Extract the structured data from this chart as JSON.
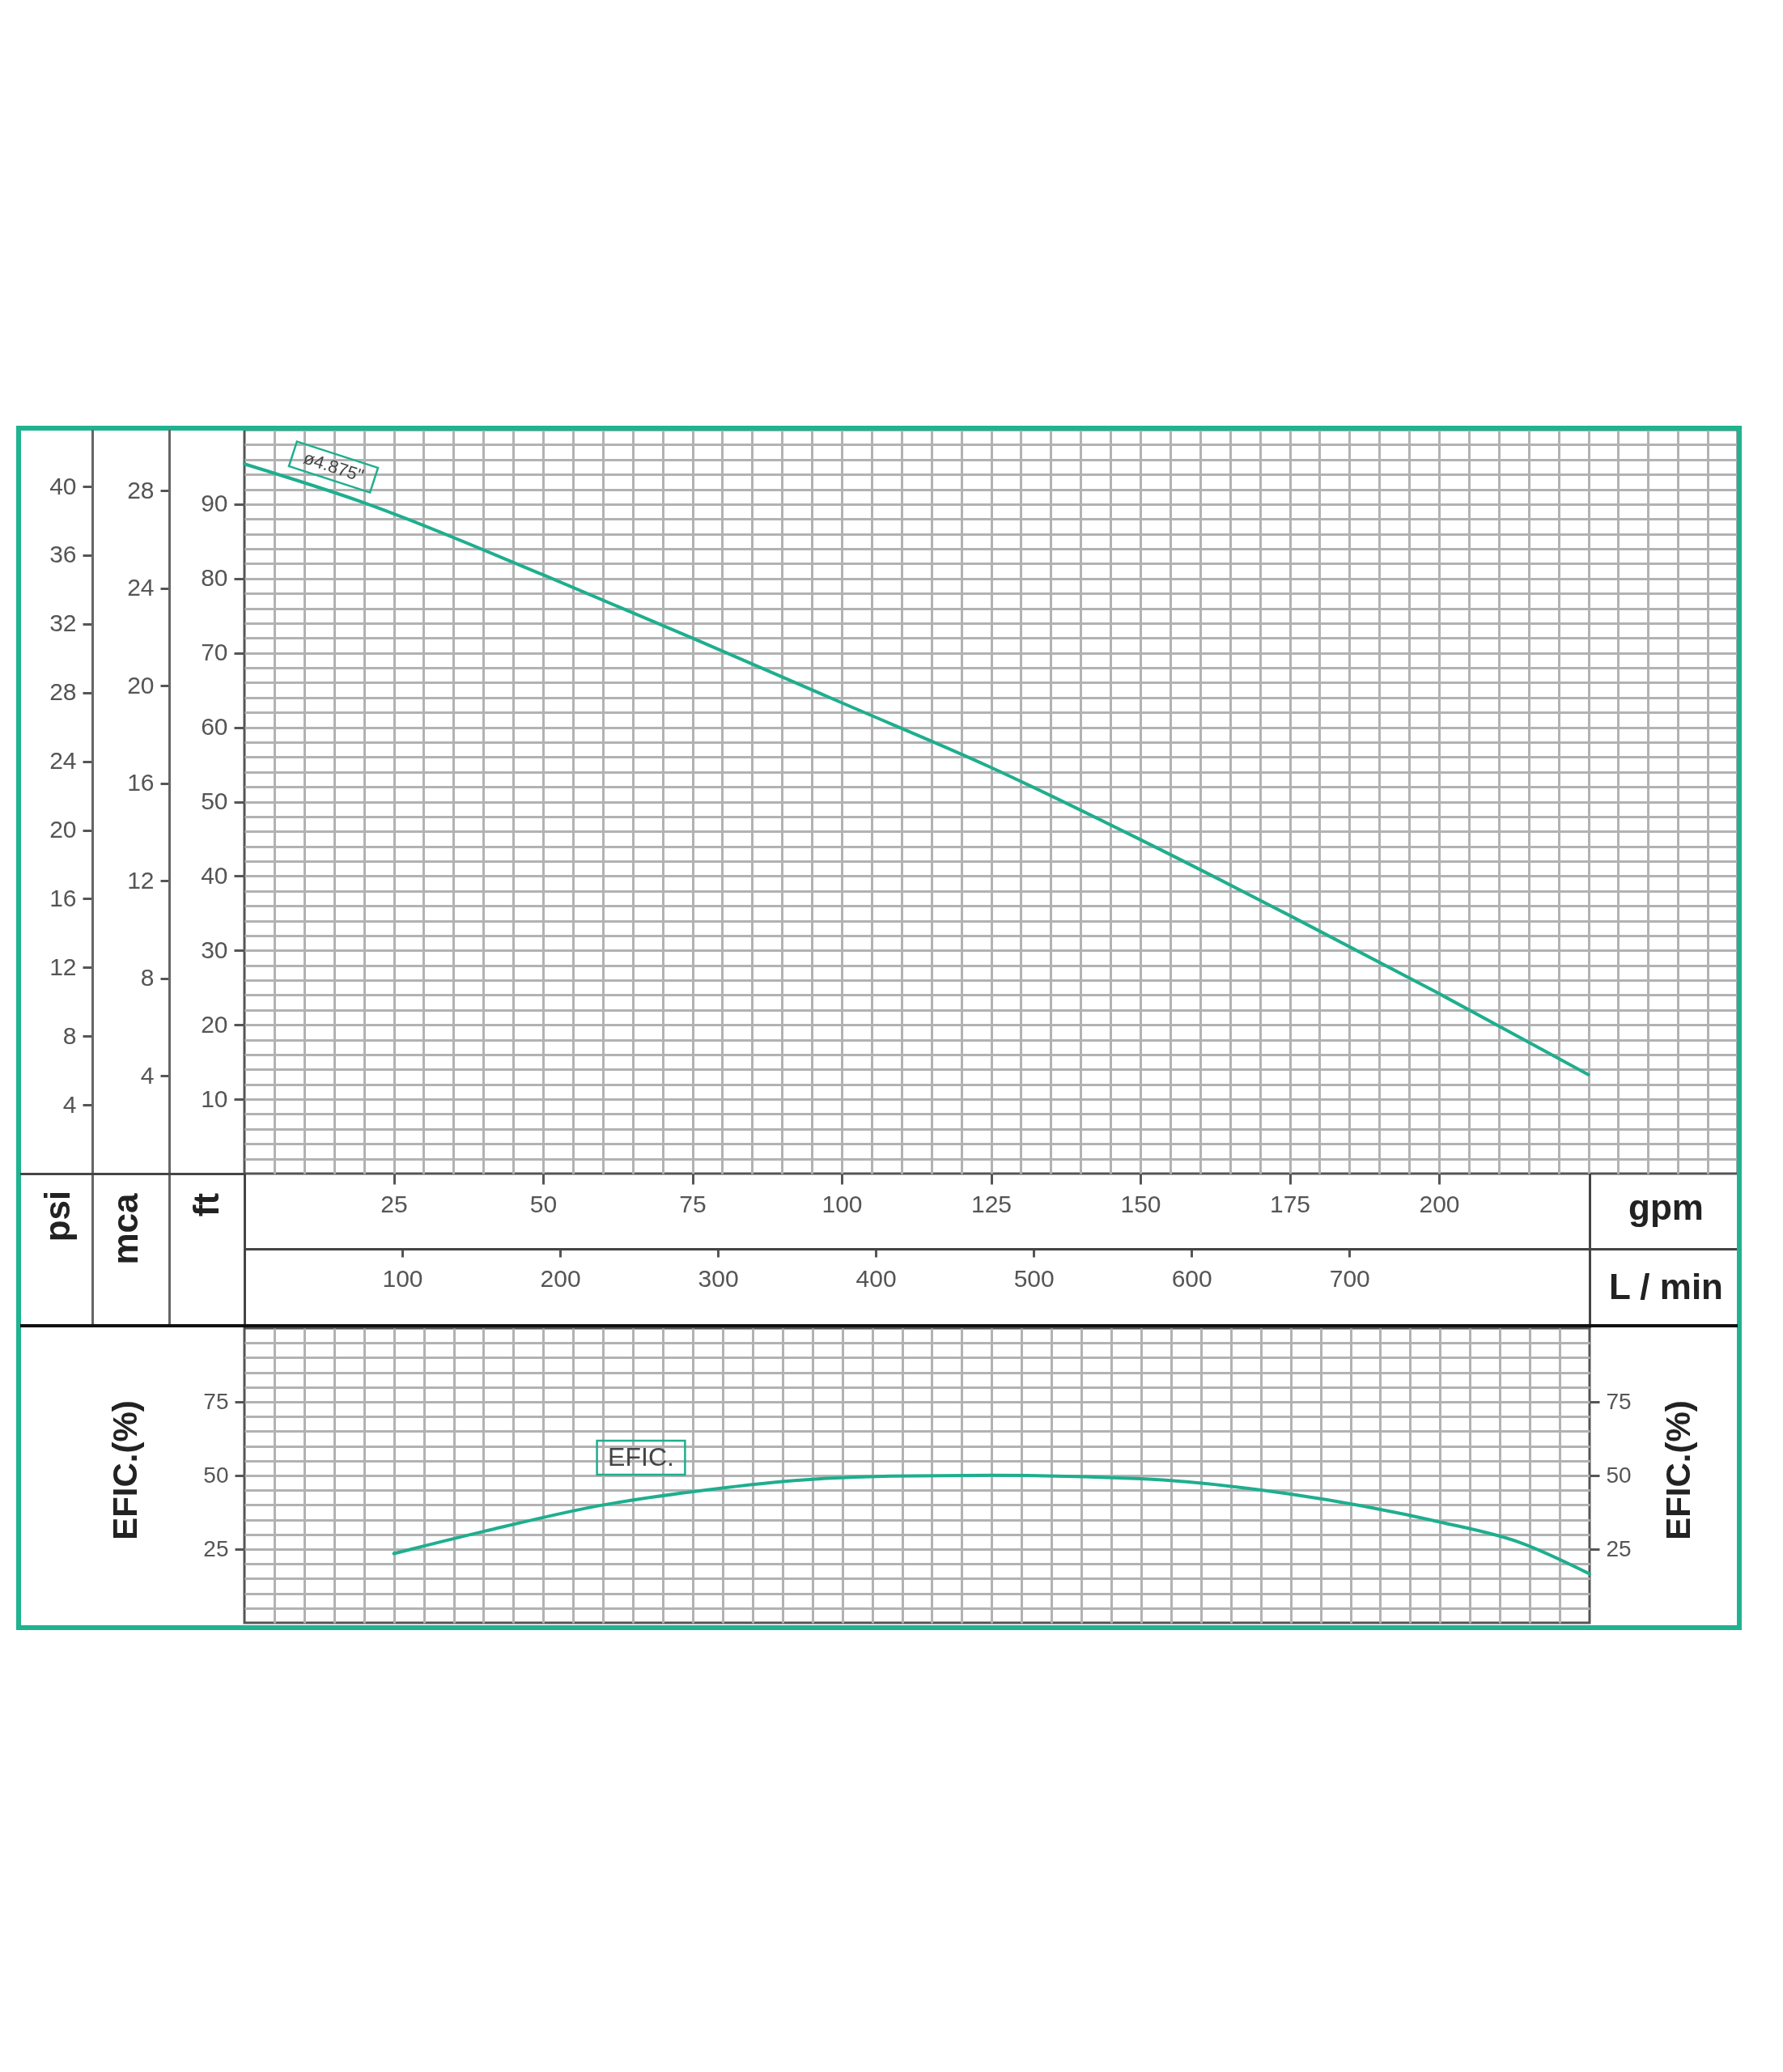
{
  "chart_data": [
    {
      "type": "line",
      "xlabel": "gpm",
      "x2label": "L / min",
      "ylabel": "ft",
      "y2label": "mca",
      "y3label": "psi",
      "xlim": [
        0,
        250
      ],
      "xticks": [
        {
          "value": 5,
          "label": null
        },
        {
          "value": 10,
          "label": null
        },
        {
          "value": 15,
          "label": null
        },
        {
          "value": 20,
          "label": null
        },
        25,
        {
          "value": 30,
          "label": null
        },
        {
          "value": 35,
          "label": null
        },
        {
          "value": 40,
          "label": null
        },
        {
          "value": 45,
          "label": null
        },
        50,
        {
          "value": 55,
          "label": null
        },
        {
          "value": 60,
          "label": null
        },
        {
          "value": 65,
          "label": null
        },
        {
          "value": 70,
          "label": null
        },
        75,
        {
          "value": 80,
          "label": null
        },
        {
          "value": 85,
          "label": null
        },
        {
          "value": 90,
          "label": null
        },
        {
          "value": 95,
          "label": null
        },
        100,
        {
          "value": 105,
          "label": null
        },
        {
          "value": 110,
          "label": null
        },
        {
          "value": 115,
          "label": null
        },
        {
          "value": 120,
          "label": null
        },
        125,
        {
          "value": 130,
          "label": null
        },
        {
          "value": 135,
          "label": null
        },
        {
          "value": 140,
          "label": null
        },
        {
          "value": 145,
          "label": null
        },
        150,
        {
          "value": 155,
          "label": null
        },
        {
          "value": 160,
          "label": null
        },
        {
          "value": 165,
          "label": null
        },
        {
          "value": 170,
          "label": null
        },
        175,
        {
          "value": 180,
          "label": null
        },
        {
          "value": 185,
          "label": null
        },
        {
          "value": 190,
          "label": null
        },
        {
          "value": 195,
          "label": null
        },
        200,
        {
          "value": 205,
          "label": null
        },
        {
          "value": 210,
          "label": null
        },
        {
          "value": 215,
          "label": null
        },
        {
          "value": 220,
          "label": null
        },
        {
          "value": 225,
          "label": null
        },
        {
          "value": 230,
          "label": null
        },
        {
          "value": 235,
          "label": null
        },
        {
          "value": 240,
          "label": null
        },
        {
          "value": 245,
          "label": null
        }
      ],
      "x2lim": [
        0,
        946
      ],
      "x2ticks": [
        100,
        200,
        300,
        400,
        500,
        600,
        700
      ],
      "ylim": [
        0,
        100
      ],
      "yticks": [
        {
          "value": 2,
          "label": null
        },
        {
          "value": 4,
          "label": null
        },
        {
          "value": 6,
          "label": null
        },
        {
          "value": 8,
          "label": null
        },
        10,
        {
          "value": 12,
          "label": null
        },
        {
          "value": 14,
          "label": null
        },
        {
          "value": 16,
          "label": null
        },
        {
          "value": 18,
          "label": null
        },
        20,
        {
          "value": 22,
          "label": null
        },
        {
          "value": 24,
          "label": null
        },
        {
          "value": 26,
          "label": null
        },
        {
          "value": 28,
          "label": null
        },
        30,
        {
          "value": 32,
          "label": null
        },
        {
          "value": 34,
          "label": null
        },
        {
          "value": 36,
          "label": null
        },
        {
          "value": 38,
          "label": null
        },
        40,
        {
          "value": 42,
          "label": null
        },
        {
          "value": 44,
          "label": null
        },
        {
          "value": 46,
          "label": null
        },
        {
          "value": 48,
          "label": null
        },
        50,
        {
          "value": 52,
          "label": null
        },
        {
          "value": 54,
          "label": null
        },
        {
          "value": 56,
          "label": null
        },
        {
          "value": 58,
          "label": null
        },
        60,
        {
          "value": 62,
          "label": null
        },
        {
          "value": 64,
          "label": null
        },
        {
          "value": 66,
          "label": null
        },
        {
          "value": 68,
          "label": null
        },
        70,
        {
          "value": 72,
          "label": null
        },
        {
          "value": 74,
          "label": null
        },
        {
          "value": 76,
          "label": null
        },
        {
          "value": 78,
          "label": null
        },
        80,
        {
          "value": 82,
          "label": null
        },
        {
          "value": 84,
          "label": null
        },
        {
          "value": 86,
          "label": null
        },
        {
          "value": 88,
          "label": null
        },
        90,
        {
          "value": 92,
          "label": null
        },
        {
          "value": 94,
          "label": null
        },
        {
          "value": 96,
          "label": null
        },
        {
          "value": 98,
          "label": null
        }
      ],
      "y2lim": [
        0,
        30.5
      ],
      "y2ticks": [
        4,
        8,
        12,
        16,
        20,
        24,
        28
      ],
      "y3lim": [
        0,
        43.3
      ],
      "y3ticks": [
        4,
        8,
        12,
        16,
        20,
        24,
        28,
        32,
        36,
        40
      ],
      "grid": true,
      "series": [
        {
          "name": "ø4.875\"",
          "color": "#1fae8e",
          "x": [
            0,
            20,
            50,
            75,
            100,
            125,
            150,
            175,
            200,
            225
          ],
          "values": [
            95.4,
            90.2,
            80.5,
            72,
            63.3,
            54.6,
            44.9,
            34.7,
            24.2,
            13.3
          ]
        }
      ]
    },
    {
      "type": "line",
      "ylabel": "EFIC.(%)",
      "y2label": "EFIC.(%)",
      "xlim": [
        0,
        225
      ],
      "xticks": [
        5,
        10,
        15,
        20,
        25,
        30,
        35,
        40,
        45,
        50,
        55,
        60,
        65,
        70,
        75,
        80,
        85,
        90,
        95,
        100,
        105,
        110,
        115,
        120,
        125,
        130,
        135,
        140,
        145,
        150,
        155,
        160,
        165,
        170,
        175,
        180,
        185,
        190,
        195,
        200,
        205,
        210,
        215,
        220
      ],
      "ylim": [
        0,
        100
      ],
      "yticks": [
        {
          "value": 5,
          "label": null
        },
        {
          "value": 10,
          "label": null
        },
        {
          "value": 15,
          "label": null
        },
        {
          "value": 20,
          "label": null
        },
        25,
        {
          "value": 30,
          "label": null
        },
        {
          "value": 35,
          "label": null
        },
        {
          "value": 40,
          "label": null
        },
        {
          "value": 45,
          "label": null
        },
        50,
        {
          "value": 55,
          "label": null
        },
        {
          "value": 60,
          "label": null
        },
        {
          "value": 65,
          "label": null
        },
        {
          "value": 70,
          "label": null
        },
        75,
        {
          "value": 80,
          "label": null
        },
        {
          "value": 85,
          "label": null
        },
        {
          "value": 90,
          "label": null
        },
        {
          "value": 95,
          "label": null
        }
      ],
      "y2lim": [
        0,
        100
      ],
      "y2ticks": [
        25,
        50,
        75
      ],
      "tick_labels": "y",
      "grid": true,
      "series": [
        {
          "name": "EFIC.",
          "color": "#1fae8e",
          "x": [
            25,
            40,
            60,
            75,
            92,
            108,
            125,
            150,
            175,
            200,
            213,
            225
          ],
          "values": [
            23.5,
            31,
            40,
            44.5,
            48.3,
            49.8,
            50.1,
            48.9,
            43.7,
            34.2,
            27.5,
            16.6
          ]
        }
      ]
    }
  ]
}
